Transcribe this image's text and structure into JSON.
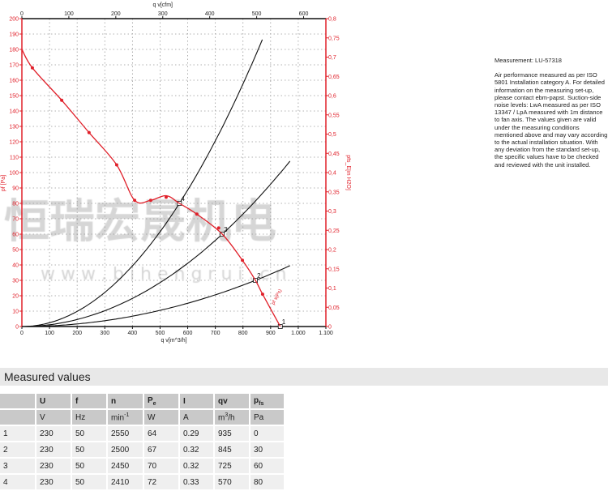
{
  "chart_data": {
    "type": "line",
    "top_axis": {
      "label": "q v[cfm]",
      "ticks": [
        "0",
        "100",
        "200",
        "300",
        "400",
        "500",
        "600"
      ],
      "range_cfm": [
        0,
        647
      ]
    },
    "x_axis": {
      "label": "q v[m^3/h]",
      "range": [
        0,
        1100
      ],
      "ticks": [
        "0",
        "100",
        "200",
        "300",
        "400",
        "500",
        "600",
        "700",
        "800",
        "900",
        "1.000",
        "1.100"
      ]
    },
    "y_axis": {
      "label": "pf [Pa]",
      "range": [
        0,
        200
      ],
      "step": 10,
      "color": "#e0202a"
    },
    "y2_axis": {
      "label": "pfs_E[in H2O]",
      "range": [
        0,
        0.8
      ],
      "ticks": [
        "0",
        "0,05",
        "0,1",
        "0,15",
        "0,2",
        "0,25",
        "0,3",
        "0,35",
        "0,4",
        "0,45",
        "0,5",
        "0,55",
        "0,6",
        "0,65",
        "0,7",
        "0,75",
        "0,8"
      ],
      "color": "#e0202a"
    },
    "grid": true,
    "fan_curve": {
      "label": "pf s(Ps)",
      "color": "#e0202a",
      "points": [
        [
          0,
          180
        ],
        [
          38,
          168
        ],
        [
          144,
          147
        ],
        [
          243,
          126
        ],
        [
          343,
          105
        ],
        [
          408,
          82
        ],
        [
          466,
          82
        ],
        [
          522,
          85
        ],
        [
          570,
          80
        ],
        [
          633,
          73
        ],
        [
          725,
          60
        ],
        [
          798,
          43
        ],
        [
          845,
          30
        ],
        [
          871,
          21
        ],
        [
          935,
          0
        ]
      ],
      "markers": [
        [
          38,
          168
        ],
        [
          144,
          147
        ],
        [
          243,
          126
        ],
        [
          343,
          105
        ],
        [
          408,
          82
        ],
        [
          466,
          82
        ],
        [
          522,
          84
        ],
        [
          633,
          73
        ],
        [
          712,
          64
        ],
        [
          798,
          43
        ],
        [
          871,
          21
        ]
      ]
    },
    "system_curves": [
      {
        "label": "4",
        "point": [
          570,
          80
        ],
        "x_end": 877
      },
      {
        "label": "3",
        "point": [
          725,
          60
        ],
        "x_end": 970
      },
      {
        "label": "2",
        "point": [
          845,
          30
        ],
        "x_end": 970
      },
      {
        "label": "1",
        "point": [
          935,
          0
        ],
        "x_end": 970
      }
    ],
    "curve_color": "#111111"
  },
  "watermark": {
    "chinese": "恒瑞宏晟机电",
    "url": "w w w . b i h e n g r u i . c n"
  },
  "info": {
    "measurement": "Measurement: LU-57318",
    "description": "Air performance measured as per ISO 5801 Installation category A. For detailed information on the measuring set-up, please contact ebm-papst. Suction-side noise levels: LwA measured as per ISO 13347 / LpA measured with 1m distance to fan axis. The values given are valid under the measuring conditions mentioned above and may vary according to the actual installation situation. With any deviation from the standard set-up, the specific values have to be checked and reviewed with the unit installed."
  },
  "measured": {
    "title": "Measured values",
    "headers": [
      "",
      "U",
      "f",
      "n",
      "P",
      "I",
      "qv",
      "p"
    ],
    "header_subs": {
      "4": "e",
      "7": "fs"
    },
    "units": [
      "",
      "V",
      "Hz",
      "min",
      "W",
      "A",
      "m",
      "Pa"
    ],
    "unit_sups": {
      "3": "-1",
      "6": "3"
    },
    "unit_suffix": {
      "6": "/h"
    },
    "rows": [
      [
        "1",
        "230",
        "50",
        "2550",
        "64",
        "0.29",
        "935",
        "0"
      ],
      [
        "2",
        "230",
        "50",
        "2500",
        "67",
        "0.32",
        "845",
        "30"
      ],
      [
        "3",
        "230",
        "50",
        "2450",
        "70",
        "0.32",
        "725",
        "60"
      ],
      [
        "4",
        "230",
        "50",
        "2410",
        "72",
        "0.33",
        "570",
        "80"
      ]
    ]
  }
}
